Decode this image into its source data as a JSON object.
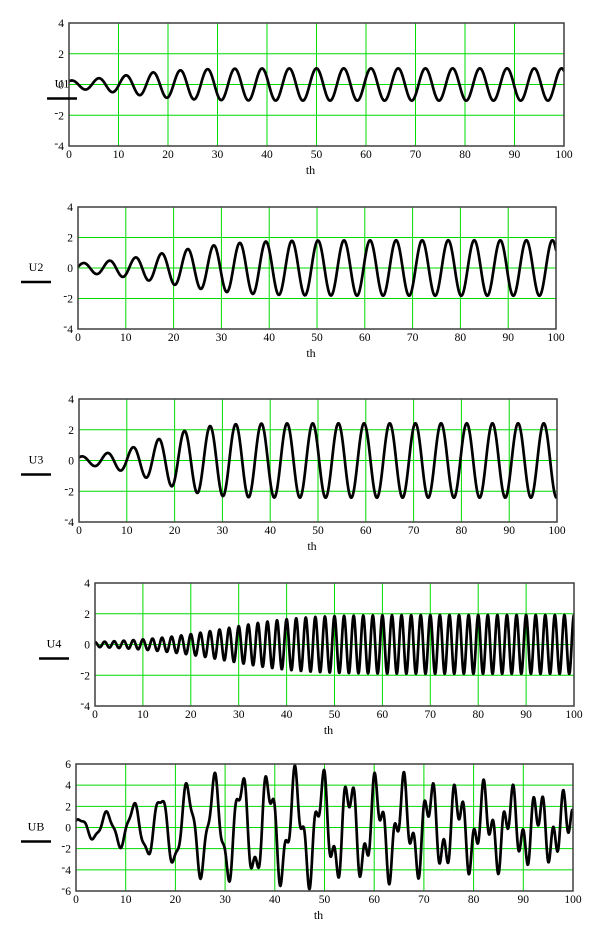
{
  "style": {
    "background": "#FFFFFF",
    "grid_color": "#00DC00",
    "trace_color": "#000000",
    "axis_color": "#3F3F3F",
    "text_color": "#000000"
  },
  "chart_data": [
    {
      "type": "line",
      "panel": "U1",
      "ylabel": "U1",
      "xlabel": "th",
      "xlim": [
        0,
        100
      ],
      "ylim": [
        -4,
        4
      ],
      "xticks": [
        0,
        10,
        20,
        30,
        40,
        50,
        60,
        70,
        80,
        90,
        100
      ],
      "xtick_labels": [
        "0",
        "10",
        "20",
        "30",
        "40",
        "50",
        "60",
        "70",
        "80",
        "90",
        "100"
      ],
      "yticks": [
        4,
        2,
        0,
        -2,
        -4
      ],
      "ytick_labels": [
        "4",
        "2",
        "0",
        "-2",
        "-4"
      ],
      "grid": true,
      "legend_position": "left-of-axis",
      "signal": {
        "model": "limit-cycle-oscillation",
        "A0": 0.25,
        "Asat": 1.05,
        "k": 0.18,
        "period": 5.5,
        "tref": 50.0
      }
    },
    {
      "type": "line",
      "panel": "U2",
      "ylabel": "U2",
      "xlabel": "th",
      "xlim": [
        0,
        100
      ],
      "ylim": [
        -4,
        4
      ],
      "xticks": [
        0,
        10,
        20,
        30,
        40,
        50,
        60,
        70,
        80,
        90,
        100
      ],
      "xtick_labels": [
        "0",
        "10",
        "20",
        "30",
        "40",
        "50",
        "60",
        "70",
        "80",
        "90",
        "100"
      ],
      "yticks": [
        4,
        2,
        0,
        -2,
        -4
      ],
      "ytick_labels": [
        "4",
        "2",
        "0",
        "-2",
        "-4"
      ],
      "grid": true,
      "legend_position": "left-of-axis",
      "signal": {
        "model": "limit-cycle-oscillation",
        "A0": 0.3,
        "Asat": 1.82,
        "k": 0.15,
        "period": 5.45,
        "tref": 50.2
      }
    },
    {
      "type": "line",
      "panel": "U3",
      "ylabel": "U3",
      "xlabel": "th",
      "xlim": [
        0,
        100
      ],
      "ylim": [
        -4,
        4
      ],
      "xticks": [
        0,
        10,
        20,
        30,
        40,
        50,
        60,
        70,
        80,
        90,
        100
      ],
      "xtick_labels": [
        "0",
        "10",
        "20",
        "30",
        "40",
        "50",
        "60",
        "70",
        "80",
        "90",
        "100"
      ],
      "yticks": [
        4,
        2,
        0,
        -2,
        -4
      ],
      "ytick_labels": [
        "4",
        "2",
        "0",
        "-2",
        "-4"
      ],
      "grid": true,
      "legend_position": "left-of-axis",
      "signal": {
        "model": "limit-cycle-oscillation",
        "A0": 0.25,
        "Asat": 2.42,
        "k": 0.23,
        "period": 5.37,
        "tref": 48.9
      }
    },
    {
      "type": "line",
      "panel": "U4",
      "ylabel": "U4",
      "xlabel": "th",
      "xlim": [
        0,
        100
      ],
      "ylim": [
        -4,
        4
      ],
      "xticks": [
        0,
        10,
        20,
        30,
        40,
        50,
        60,
        70,
        80,
        90,
        100
      ],
      "xtick_labels": [
        "0",
        "10",
        "20",
        "30",
        "40",
        "50",
        "60",
        "70",
        "80",
        "90",
        "100"
      ],
      "yticks": [
        4,
        2,
        0,
        -2,
        -4
      ],
      "ytick_labels": [
        "4",
        "2",
        "0",
        "-2",
        "-4"
      ],
      "grid": true,
      "legend_position": "left-of-axis",
      "signal": {
        "model": "limit-cycle-oscillation",
        "A0": 0.16,
        "Asat": 1.92,
        "k": 0.15,
        "period": 2.0,
        "tref": 50.0
      }
    },
    {
      "type": "line",
      "panel": "UB",
      "ylabel": "UB",
      "xlabel": "th",
      "xlim": [
        0,
        100
      ],
      "ylim": [
        -6,
        6
      ],
      "xticks": [
        0,
        10,
        20,
        30,
        40,
        50,
        60,
        70,
        80,
        90,
        100
      ],
      "xtick_labels": [
        "0",
        "10",
        "20",
        "30",
        "40",
        "50",
        "60",
        "70",
        "80",
        "90",
        "100"
      ],
      "yticks": [
        6,
        4,
        2,
        0,
        -2,
        -4,
        -6
      ],
      "ytick_labels": [
        "6",
        "4",
        "2",
        "0",
        "-2",
        "-4",
        "-6"
      ],
      "grid": true,
      "legend_position": "left-of-axis",
      "signal": {
        "model": "sum",
        "sum_of": [
          "U1",
          "U2",
          "U3",
          "U4"
        ]
      }
    }
  ]
}
